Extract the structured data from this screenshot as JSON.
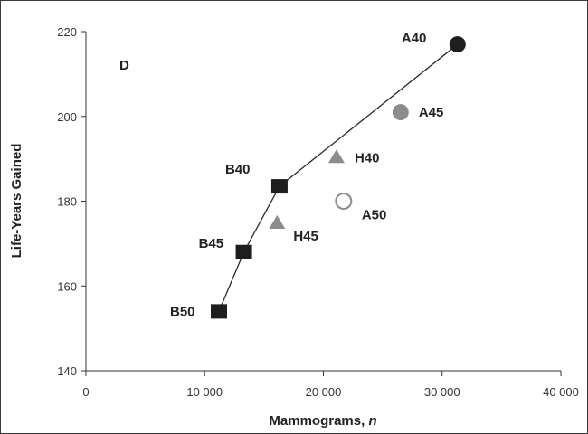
{
  "chart_data": {
    "type": "scatter",
    "panel_label": "D",
    "xlabel": "Mammograms, ",
    "xlabel_var": "n",
    "ylabel": "Life-Years Gained",
    "xlim": [
      0,
      40000
    ],
    "ylim": [
      140,
      220
    ],
    "xticks": [
      0,
      10000,
      20000,
      30000,
      40000
    ],
    "xtick_labels": [
      "0",
      "10 000",
      "20 000",
      "30 000",
      "40 000"
    ],
    "yticks": [
      140,
      160,
      180,
      200,
      220
    ],
    "ytick_labels": [
      "140",
      "160",
      "180",
      "200",
      "220"
    ],
    "grid": false,
    "points": [
      {
        "label": "B50",
        "x": 11200,
        "y": 154,
        "marker": "square",
        "color": "#1e1e1e"
      },
      {
        "label": "B45",
        "x": 13300,
        "y": 168,
        "marker": "square",
        "color": "#1e1e1e"
      },
      {
        "label": "B40",
        "x": 16300,
        "y": 183.5,
        "marker": "square",
        "color": "#1e1e1e"
      },
      {
        "label": "H45",
        "x": 16100,
        "y": 175,
        "marker": "triangle",
        "color": "#8c8c8c"
      },
      {
        "label": "H40",
        "x": 21100,
        "y": 190.5,
        "marker": "triangle",
        "color": "#8c8c8c"
      },
      {
        "label": "A50",
        "x": 21700,
        "y": 180,
        "marker": "circle-open",
        "color": "#8c8c8c"
      },
      {
        "label": "A45",
        "x": 26500,
        "y": 201,
        "marker": "circle",
        "color": "#8c8c8c"
      },
      {
        "label": "A40",
        "x": 31300,
        "y": 217,
        "marker": "circle",
        "color": "#1e1e1e"
      }
    ],
    "frontier": [
      "B50",
      "B45",
      "B40",
      "A40"
    ]
  }
}
